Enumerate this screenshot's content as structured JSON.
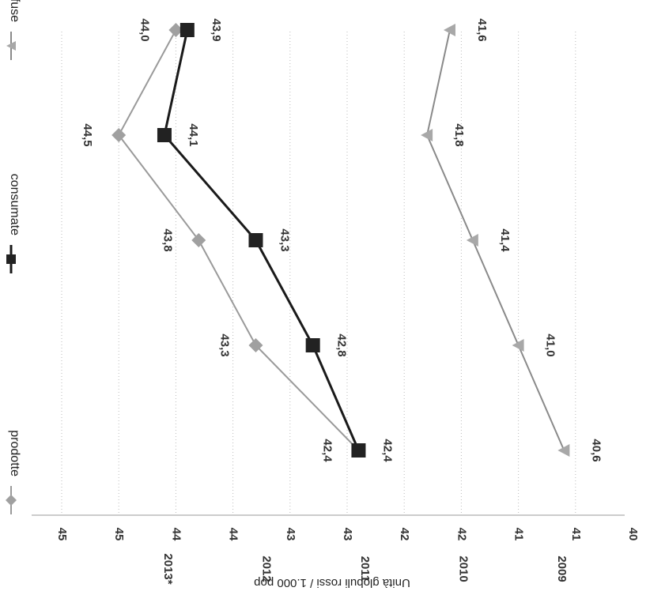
{
  "chart_data": {
    "type": "line",
    "orientation": "rotated-90-clockwise",
    "categories": [
      "2009",
      "2010",
      "2011",
      "2012",
      "2013*"
    ],
    "ylabel": "Unità globuli rossi / 1.000 pop",
    "xlabel": "",
    "title": "",
    "y_axis_range": [
      40,
      45
    ],
    "y_tick_labels": [
      "40",
      "41",
      "41",
      "42",
      "42",
      "43",
      "43",
      "44",
      "44",
      "45",
      "45"
    ],
    "grid": "horizontal dotted",
    "legend_position": "top",
    "series": [
      {
        "name": "prodotte",
        "values": [
          42.4,
          43.3,
          43.8,
          44.5,
          44.0
        ],
        "labels": [
          "42,4",
          "43,3",
          "43,8",
          "44,5",
          "44,0"
        ],
        "color": "#9a9a9a",
        "marker": "diamond"
      },
      {
        "name": "consumate",
        "values": [
          42.4,
          42.8,
          43.3,
          44.1,
          43.9
        ],
        "labels": [
          "42,4",
          "42,8",
          "43,3",
          "44,1",
          "43,9"
        ],
        "color": "#1a1a1a",
        "marker": "square"
      },
      {
        "name": "trasfuse",
        "values": [
          40.6,
          41.0,
          41.4,
          41.8,
          41.6
        ],
        "labels": [
          "40,6",
          "41,0",
          "41,4",
          "41,8",
          "41,6"
        ],
        "color": "#8a8a8a",
        "marker": "triangle"
      }
    ]
  }
}
